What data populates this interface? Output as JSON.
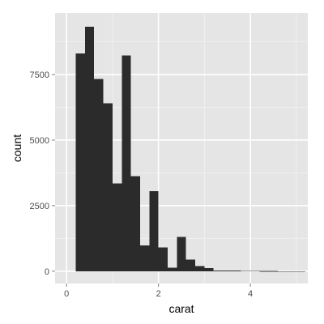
{
  "chart_data": {
    "type": "bar",
    "title": "",
    "xlabel": "carat",
    "ylabel": "count",
    "xlim": [
      -0.25,
      5.25
    ],
    "ylim": [
      -470,
      9850
    ],
    "x_ticks": [
      0,
      2,
      4
    ],
    "y_ticks": [
      0,
      2500,
      5000,
      7500
    ],
    "y_tick_labels": [
      "0",
      "2500",
      "5000",
      "7500"
    ],
    "x_tick_labels": [
      "0",
      "2",
      "4"
    ],
    "grid": true,
    "legend": "none",
    "bin_width": 0.2,
    "bins": [
      {
        "x0": 0.2,
        "x1": 0.4,
        "count": 8300
      },
      {
        "x0": 0.4,
        "x1": 0.6,
        "count": 9330
      },
      {
        "x0": 0.6,
        "x1": 0.8,
        "count": 7330
      },
      {
        "x0": 0.8,
        "x1": 1.0,
        "count": 6400
      },
      {
        "x0": 1.0,
        "x1": 1.2,
        "count": 3350
      },
      {
        "x0": 1.2,
        "x1": 1.4,
        "count": 8230
      },
      {
        "x0": 1.4,
        "x1": 1.6,
        "count": 3630
      },
      {
        "x0": 1.6,
        "x1": 1.8,
        "count": 980
      },
      {
        "x0": 1.8,
        "x1": 2.0,
        "count": 3050
      },
      {
        "x0": 2.0,
        "x1": 2.2,
        "count": 900
      },
      {
        "x0": 2.2,
        "x1": 2.4,
        "count": 140
      },
      {
        "x0": 2.4,
        "x1": 2.6,
        "count": 1300
      },
      {
        "x0": 2.6,
        "x1": 2.8,
        "count": 440
      },
      {
        "x0": 2.8,
        "x1": 3.0,
        "count": 200
      },
      {
        "x0": 3.0,
        "x1": 3.2,
        "count": 110
      },
      {
        "x0": 3.2,
        "x1": 3.4,
        "count": 30
      },
      {
        "x0": 3.4,
        "x1": 3.6,
        "count": 25
      },
      {
        "x0": 3.6,
        "x1": 3.8,
        "count": 20
      },
      {
        "x0": 3.8,
        "x1": 4.0,
        "count": 8
      },
      {
        "x0": 4.0,
        "x1": 4.2,
        "count": 6
      },
      {
        "x0": 4.2,
        "x1": 4.4,
        "count": 4
      },
      {
        "x0": 4.4,
        "x1": 4.6,
        "count": 2
      },
      {
        "x0": 4.6,
        "x1": 4.8,
        "count": 1
      },
      {
        "x0": 4.8,
        "x1": 5.0,
        "count": 1
      },
      {
        "x0": 5.0,
        "x1": 5.2,
        "count": 1
      }
    ]
  },
  "colors": {
    "panel_background": "#e5e5e5",
    "grid_major": "#ffffff",
    "grid_minor": "#f2f2f2",
    "bar_fill": "#2b2b2b",
    "tick_text": "#4d4d4d",
    "tick_mark": "#7f7f7f"
  }
}
